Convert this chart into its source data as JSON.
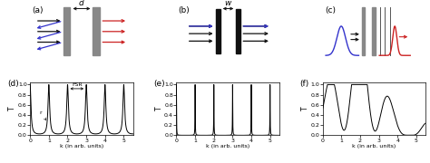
{
  "panel_labels": [
    "(a)",
    "(b)",
    "(c)",
    "(d)",
    "(e)",
    "(f)"
  ],
  "fsr_label": "FSR",
  "r_label": "r",
  "xlabel": "k (in arb. units)",
  "ylabel": "T",
  "xlim": [
    0,
    5.5
  ],
  "ylim": [
    0,
    1.05
  ],
  "xticks": [
    0,
    1,
    2,
    3,
    4,
    5
  ],
  "yticks": [
    0,
    0.2,
    0.4,
    0.6,
    0.8,
    1
  ],
  "mirror_color": "#888888",
  "blue": "#3333cc",
  "red": "#cc2222",
  "black": "#111111"
}
